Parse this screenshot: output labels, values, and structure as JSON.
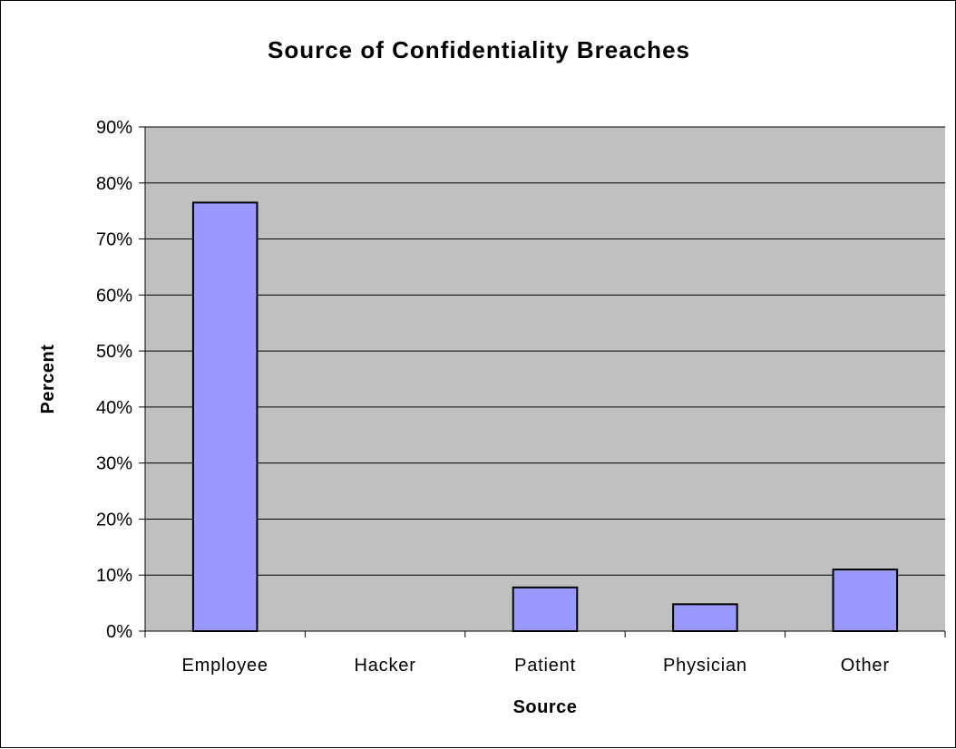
{
  "chart_data": {
    "type": "bar",
    "title": "Source of Confidentiality Breaches",
    "xlabel": "Source",
    "ylabel": "Percent",
    "categories": [
      "Employee",
      "Hacker",
      "Patient",
      "Physician",
      "Other"
    ],
    "values": [
      0.765,
      0.0,
      0.078,
      0.048,
      0.11
    ],
    "ylim": [
      0,
      0.9
    ],
    "yticks": [
      "0%",
      "10%",
      "20%",
      "30%",
      "40%",
      "50%",
      "60%",
      "70%",
      "80%",
      "90%"
    ],
    "grid": true,
    "legend": "none",
    "colors": {
      "bar_fill": "#9999ff",
      "plot_background": "#c0c0c0",
      "gridline": "#000000",
      "outline": "#000000"
    }
  }
}
